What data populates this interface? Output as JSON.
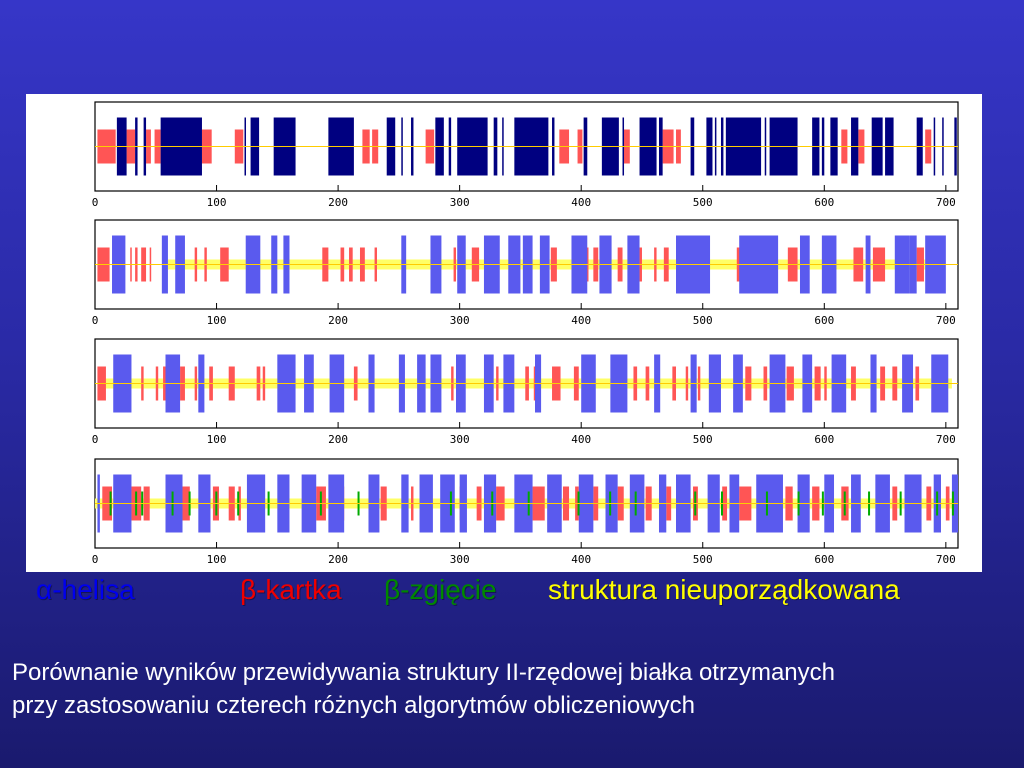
{
  "legend": [
    {
      "symbol": "α",
      "suffix": "-helisa",
      "color": "#0000ee"
    },
    {
      "symbol": "β",
      "suffix": "-kartka",
      "color": "#ee0000"
    },
    {
      "symbol": "β",
      "suffix": "-zgięcie",
      "color": "#008800"
    },
    {
      "symbol": "",
      "suffix": "struktura nieuporządkowana",
      "color": "#ffff00"
    }
  ],
  "caption": {
    "line1": "Porównanie wyników przewidywania struktury II-rzędowej białka otrzymanych",
    "line2": "przy zastosowaniu czterech różnych algorytmów obliczeniowych"
  },
  "chart_data": {
    "type": "track",
    "xlim": [
      0,
      710
    ],
    "x_ticks": [
      0,
      100,
      200,
      300,
      400,
      500,
      600,
      700
    ],
    "tracks": [
      {
        "helix": [
          [
            18,
            26
          ],
          [
            33,
            35
          ],
          [
            40,
            42
          ],
          [
            54,
            88
          ],
          [
            123,
            124
          ],
          [
            128,
            135
          ],
          [
            147,
            165
          ],
          [
            192,
            213
          ],
          [
            240,
            247
          ],
          [
            252,
            253
          ],
          [
            260,
            262
          ],
          [
            280,
            287
          ],
          [
            291,
            293
          ],
          [
            298,
            323
          ],
          [
            328,
            331
          ],
          [
            335,
            336
          ],
          [
            345,
            373
          ],
          [
            376,
            378
          ],
          [
            402,
            405
          ],
          [
            417,
            431
          ],
          [
            434,
            435
          ],
          [
            448,
            462
          ],
          [
            464,
            467
          ],
          [
            490,
            493
          ],
          [
            503,
            508
          ],
          [
            510,
            511
          ],
          [
            515,
            517
          ],
          [
            519,
            548
          ],
          [
            551,
            552
          ],
          [
            555,
            578
          ],
          [
            590,
            596
          ],
          [
            598,
            600
          ],
          [
            605,
            611
          ],
          [
            622,
            628
          ],
          [
            639,
            648
          ],
          [
            650,
            657
          ],
          [
            676,
            681
          ],
          [
            690,
            691
          ],
          [
            697,
            698
          ],
          [
            707,
            709
          ]
        ],
        "strand": [
          [
            2,
            17
          ],
          [
            26,
            33
          ],
          [
            42,
            46
          ],
          [
            49,
            54
          ],
          [
            88,
            96
          ],
          [
            115,
            122
          ],
          [
            220,
            226
          ],
          [
            228,
            233
          ],
          [
            272,
            279
          ],
          [
            306,
            312
          ],
          [
            382,
            390
          ],
          [
            397,
            401
          ],
          [
            435,
            440
          ],
          [
            467,
            476
          ],
          [
            478,
            482
          ],
          [
            526,
            531
          ],
          [
            614,
            619
          ],
          [
            628,
            633
          ],
          [
            683,
            688
          ]
        ],
        "bend": [],
        "coil": [],
        "coil_color": "#ffff66",
        "helix_color": "#000080",
        "strand_color": "#ff5555"
      },
      {
        "helix": [
          [
            14,
            25
          ],
          [
            55,
            60
          ],
          [
            66,
            74
          ],
          [
            124,
            136
          ],
          [
            145,
            150
          ],
          [
            155,
            160
          ],
          [
            252,
            256
          ],
          [
            276,
            285
          ],
          [
            298,
            305
          ],
          [
            320,
            333
          ],
          [
            340,
            350
          ],
          [
            352,
            360
          ],
          [
            366,
            374
          ],
          [
            392,
            405
          ],
          [
            415,
            425
          ],
          [
            438,
            448
          ],
          [
            478,
            506
          ],
          [
            530,
            562
          ],
          [
            580,
            588
          ],
          [
            598,
            610
          ],
          [
            634,
            638
          ],
          [
            658,
            670
          ],
          [
            670,
            676
          ],
          [
            683,
            700
          ]
        ],
        "strand": [
          [
            2,
            12
          ],
          [
            29,
            30
          ],
          [
            33,
            35
          ],
          [
            38,
            42
          ],
          [
            45,
            46
          ],
          [
            82,
            84
          ],
          [
            90,
            92
          ],
          [
            103,
            110
          ],
          [
            187,
            192
          ],
          [
            202,
            205
          ],
          [
            209,
            212
          ],
          [
            218,
            222
          ],
          [
            230,
            232
          ],
          [
            295,
            297
          ],
          [
            310,
            316
          ],
          [
            375,
            380
          ],
          [
            403,
            406
          ],
          [
            410,
            414
          ],
          [
            430,
            434
          ],
          [
            448,
            450
          ],
          [
            460,
            462
          ],
          [
            468,
            472
          ],
          [
            528,
            532
          ],
          [
            570,
            578
          ],
          [
            624,
            632
          ],
          [
            640,
            650
          ],
          [
            676,
            682
          ]
        ],
        "bend": [],
        "coil": [
          [
            60,
            690
          ]
        ],
        "coil_color": "#ffff66",
        "helix_color": "#5a5aee",
        "strand_color": "#ff5555"
      },
      {
        "helix": [
          [
            15,
            30
          ],
          [
            58,
            70
          ],
          [
            85,
            90
          ],
          [
            150,
            165
          ],
          [
            172,
            180
          ],
          [
            193,
            205
          ],
          [
            225,
            230
          ],
          [
            250,
            255
          ],
          [
            265,
            272
          ],
          [
            276,
            285
          ],
          [
            297,
            305
          ],
          [
            320,
            328
          ],
          [
            336,
            345
          ],
          [
            362,
            367
          ],
          [
            400,
            412
          ],
          [
            424,
            438
          ],
          [
            460,
            465
          ],
          [
            490,
            495
          ],
          [
            505,
            515
          ],
          [
            525,
            533
          ],
          [
            555,
            568
          ],
          [
            582,
            590
          ],
          [
            606,
            618
          ],
          [
            638,
            643
          ],
          [
            664,
            673
          ],
          [
            688,
            702
          ]
        ],
        "strand": [
          [
            2,
            9
          ],
          [
            38,
            40
          ],
          [
            50,
            52
          ],
          [
            56,
            58
          ],
          [
            70,
            74
          ],
          [
            82,
            84
          ],
          [
            94,
            97
          ],
          [
            110,
            115
          ],
          [
            133,
            136
          ],
          [
            138,
            140
          ],
          [
            213,
            216
          ],
          [
            293,
            295
          ],
          [
            330,
            332
          ],
          [
            354,
            357
          ],
          [
            361,
            362
          ],
          [
            364,
            366
          ],
          [
            376,
            383
          ],
          [
            394,
            398
          ],
          [
            433,
            436
          ],
          [
            443,
            446
          ],
          [
            453,
            456
          ],
          [
            475,
            478
          ],
          [
            486,
            488
          ],
          [
            496,
            498
          ],
          [
            535,
            540
          ],
          [
            550,
            553
          ],
          [
            569,
            575
          ],
          [
            592,
            597
          ],
          [
            600,
            602
          ],
          [
            622,
            626
          ],
          [
            646,
            650
          ],
          [
            656,
            660
          ],
          [
            675,
            678
          ]
        ],
        "bend": [],
        "coil": [
          [
            5,
            705
          ]
        ],
        "coil_color": "#ffff66",
        "helix_color": "#5a5aee",
        "strand_color": "#ff5555"
      },
      {
        "helix": [
          [
            2,
            4
          ],
          [
            15,
            30
          ],
          [
            58,
            72
          ],
          [
            85,
            95
          ],
          [
            125,
            140
          ],
          [
            150,
            160
          ],
          [
            170,
            182
          ],
          [
            192,
            205
          ],
          [
            225,
            234
          ],
          [
            252,
            258
          ],
          [
            267,
            278
          ],
          [
            284,
            296
          ],
          [
            300,
            306
          ],
          [
            320,
            330
          ],
          [
            345,
            360
          ],
          [
            372,
            384
          ],
          [
            398,
            410
          ],
          [
            420,
            430
          ],
          [
            440,
            452
          ],
          [
            464,
            470
          ],
          [
            478,
            490
          ],
          [
            504,
            514
          ],
          [
            522,
            530
          ],
          [
            544,
            566
          ],
          [
            578,
            588
          ],
          [
            600,
            608
          ],
          [
            622,
            630
          ],
          [
            642,
            654
          ],
          [
            666,
            680
          ],
          [
            690,
            696
          ],
          [
            705,
            710
          ]
        ],
        "strand": [
          [
            6,
            14
          ],
          [
            30,
            38
          ],
          [
            40,
            45
          ],
          [
            72,
            78
          ],
          [
            97,
            102
          ],
          [
            110,
            115
          ],
          [
            118,
            120
          ],
          [
            182,
            190
          ],
          [
            200,
            205
          ],
          [
            235,
            240
          ],
          [
            260,
            262
          ],
          [
            270,
            275
          ],
          [
            300,
            302
          ],
          [
            314,
            318
          ],
          [
            330,
            337
          ],
          [
            360,
            370
          ],
          [
            385,
            390
          ],
          [
            395,
            398
          ],
          [
            410,
            414
          ],
          [
            430,
            435
          ],
          [
            453,
            458
          ],
          [
            470,
            474
          ],
          [
            492,
            496
          ],
          [
            516,
            520
          ],
          [
            530,
            540
          ],
          [
            568,
            574
          ],
          [
            590,
            596
          ],
          [
            614,
            620
          ],
          [
            656,
            660
          ],
          [
            684,
            688
          ],
          [
            700,
            703
          ]
        ],
        "bend": [
          [
            12,
            13
          ],
          [
            33,
            34
          ],
          [
            38,
            39
          ],
          [
            63,
            64
          ],
          [
            77,
            78
          ],
          [
            99,
            100
          ],
          [
            117,
            118
          ],
          [
            142,
            143
          ],
          [
            185,
            186
          ],
          [
            216,
            217
          ],
          [
            292,
            293
          ],
          [
            326,
            327
          ],
          [
            356,
            357
          ],
          [
            397,
            398
          ],
          [
            423,
            424
          ],
          [
            444,
            445
          ],
          [
            493,
            494
          ],
          [
            515,
            516
          ],
          [
            552,
            553
          ],
          [
            578,
            579
          ],
          [
            598,
            599
          ],
          [
            616,
            617
          ],
          [
            636,
            637
          ],
          [
            662,
            663
          ],
          [
            692,
            693
          ],
          [
            705,
            706
          ]
        ],
        "coil": [
          [
            0,
            710
          ]
        ],
        "coil_color": "#ffff66",
        "helix_color": "#5a5aee",
        "strand_color": "#ff5555"
      }
    ]
  }
}
